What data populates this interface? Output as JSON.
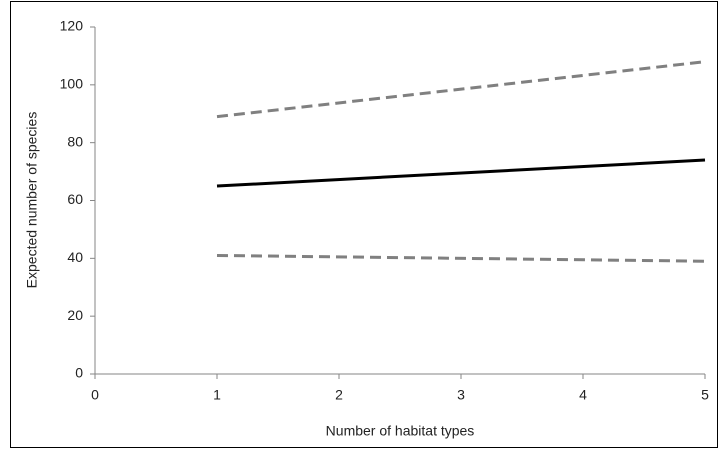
{
  "chart_data": {
    "type": "line",
    "x_label": "Number of habitat types",
    "y_label": "Expected number of species",
    "x": [
      1,
      5
    ],
    "series": [
      {
        "color": "#808080",
        "dashed": true,
        "values": [
          89,
          108
        ]
      },
      {
        "color": "#000000",
        "dashed": false,
        "values": [
          65,
          74
        ]
      },
      {
        "color": "#808080",
        "dashed": true,
        "values": [
          41,
          39
        ]
      }
    ],
    "xlim": [
      0,
      5
    ],
    "xticks": [
      0,
      1,
      2,
      3,
      4,
      5
    ],
    "ylim": [
      0,
      120
    ],
    "yticks": [
      0,
      20,
      40,
      60,
      80,
      100,
      120
    ],
    "grid": false
  }
}
